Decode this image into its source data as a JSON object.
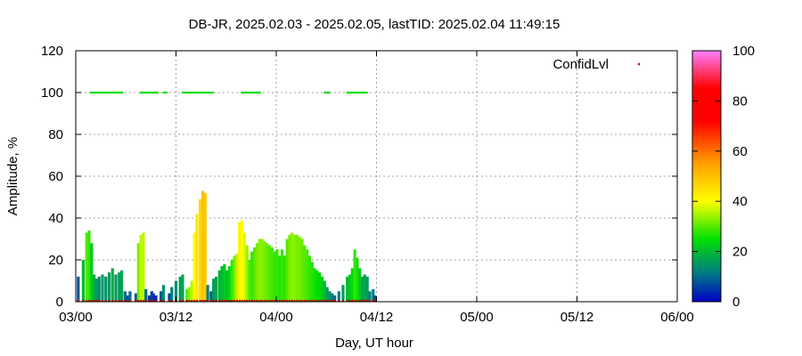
{
  "chart_data": {
    "type": "bar",
    "title": "DB-JR, 2025.02.03 - 2025.02.05, lastTID: 2025.02.04 11:49:15",
    "xlabel": "Day, UT hour",
    "ylabel": "Amplitude, %",
    "xlim": [
      0,
      72
    ],
    "ylim": [
      0,
      120
    ],
    "x_ticks": [
      {
        "value": 0,
        "label": "03/00"
      },
      {
        "value": 12,
        "label": "03/12"
      },
      {
        "value": 24,
        "label": "04/00"
      },
      {
        "value": 36,
        "label": "04/12"
      },
      {
        "value": 48,
        "label": "05/00"
      },
      {
        "value": 60,
        "label": "05/12"
      },
      {
        "value": 72,
        "label": "06/00"
      }
    ],
    "y_ticks": [
      0,
      20,
      40,
      60,
      80,
      100,
      120
    ],
    "grid": true,
    "legend": {
      "label": "ConfidLvl",
      "position": "top-right"
    },
    "colorbar": {
      "range": [
        0,
        100
      ],
      "ticks": [
        0,
        20,
        40,
        60,
        80,
        100
      ],
      "stops": [
        {
          "value": 0,
          "color": "#0000c8"
        },
        {
          "value": 12,
          "color": "#008080"
        },
        {
          "value": 25,
          "color": "#00e000"
        },
        {
          "value": 40,
          "color": "#ffff00"
        },
        {
          "value": 55,
          "color": "#ffa000"
        },
        {
          "value": 72,
          "color": "#ff0000"
        },
        {
          "value": 85,
          "color": "#ff0000"
        },
        {
          "value": 100,
          "color": "#ff80ff"
        }
      ]
    },
    "series": [
      {
        "x": [
          0.3,
          0.9,
          1.3,
          1.6,
          1.9,
          2.2,
          2.5,
          2.8,
          3.2,
          3.6,
          4.0,
          4.4,
          4.8,
          5.2,
          5.5,
          5.9,
          6.2,
          6.5,
          7.2,
          7.5,
          7.8,
          8.1,
          8.4,
          8.8,
          9.1,
          9.3,
          9.6,
          10.2,
          10.5,
          11.2,
          11.5,
          12.0,
          12.5,
          12.8,
          13.3,
          13.6,
          13.9,
          14.2,
          14.5,
          14.9,
          15.2,
          15.5,
          15.8,
          16.2,
          16.5,
          16.8,
          17.2,
          17.5,
          17.8,
          18.1,
          18.4,
          18.7,
          19.0,
          19.3,
          19.6,
          19.9,
          20.2,
          20.5,
          20.8,
          21.1,
          21.4,
          21.7,
          22.0,
          22.3,
          22.6,
          22.9,
          23.2,
          23.5,
          23.8,
          24.1,
          24.4,
          24.7,
          25.0,
          25.3,
          25.6,
          25.9,
          26.2,
          26.5,
          26.8,
          27.1,
          27.4,
          27.7,
          28.0,
          28.3,
          28.6,
          28.9,
          29.2,
          29.5,
          29.8,
          30.1,
          30.4,
          30.7,
          31.0,
          31.5,
          32.0,
          32.5,
          32.8,
          33.1,
          33.4,
          33.7,
          34.0,
          34.3,
          34.6,
          34.9,
          35.2,
          35.6,
          35.8
        ],
        "values": [
          12,
          20,
          33,
          34,
          28,
          13,
          11,
          12,
          13,
          12,
          14,
          16,
          13,
          14,
          15,
          5,
          3,
          5,
          4,
          28,
          32,
          33,
          6,
          3,
          5,
          4,
          3,
          5,
          8,
          4,
          7,
          10,
          12,
          13,
          6,
          7,
          10,
          33,
          42,
          49,
          53,
          52,
          8,
          5,
          11,
          12,
          15,
          17,
          18,
          15,
          17,
          20,
          22,
          23,
          38,
          39,
          33,
          27,
          20,
          24,
          26,
          28,
          30,
          30,
          29,
          28,
          27,
          26,
          24,
          25,
          22,
          25,
          22,
          30,
          32,
          33,
          32,
          32,
          31,
          30,
          27,
          25,
          22,
          19,
          16,
          15,
          14,
          12,
          10,
          7,
          5,
          4,
          3,
          5,
          8,
          12,
          13,
          16,
          25,
          21,
          16,
          12,
          13,
          12,
          5,
          6,
          3
        ],
        "confidence": [
          8,
          20,
          30,
          28,
          22,
          18,
          15,
          14,
          15,
          14,
          16,
          18,
          15,
          16,
          17,
          10,
          8,
          10,
          8,
          32,
          36,
          36,
          10,
          5,
          6,
          5,
          4,
          8,
          14,
          6,
          12,
          14,
          16,
          17,
          30,
          33,
          36,
          40,
          44,
          46,
          50,
          48,
          12,
          9,
          16,
          17,
          19,
          20,
          22,
          20,
          24,
          28,
          32,
          36,
          42,
          40,
          38,
          34,
          30,
          28,
          30,
          32,
          33,
          33,
          32,
          31,
          30,
          29,
          28,
          28,
          27,
          28,
          27,
          30,
          32,
          33,
          33,
          32,
          32,
          31,
          30,
          29,
          28,
          27,
          26,
          25,
          24,
          22,
          20,
          16,
          14,
          12,
          10,
          12,
          16,
          20,
          22,
          24,
          28,
          26,
          22,
          16,
          17,
          16,
          12,
          12,
          8
        ]
      }
    ],
    "confidence_markers": {
      "level": 100,
      "ranges": [
        [
          1.8,
          5.6
        ],
        [
          7.8,
          9.8
        ],
        [
          10.5,
          11.0
        ],
        [
          12.8,
          16.5
        ],
        [
          19.9,
          22.2
        ],
        [
          29.8,
          30.4
        ],
        [
          32.5,
          34.9
        ]
      ]
    }
  }
}
